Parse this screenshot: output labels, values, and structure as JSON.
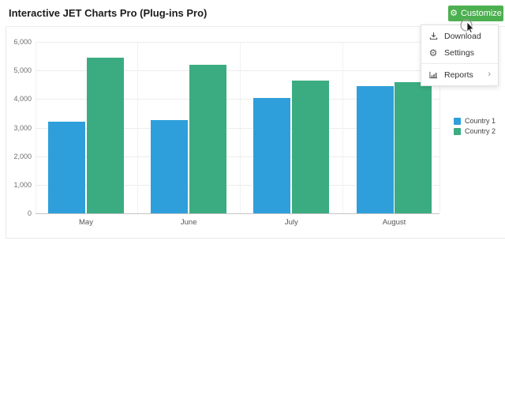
{
  "header": {
    "title": "Interactive JET Charts Pro (Plug-ins Pro)",
    "customize_label": "Customize",
    "customize_icon": "gear-icon"
  },
  "menu": {
    "items": [
      {
        "label": "Download",
        "icon": "download-icon",
        "has_submenu": false
      },
      {
        "label": "Settings",
        "icon": "gear-icon",
        "has_submenu": false
      },
      {
        "label": "Reports",
        "icon": "bar-chart-icon",
        "has_submenu": true
      }
    ],
    "submenu_arrow": "›"
  },
  "colors": {
    "accent_green": "#4CAF50",
    "series1_blue": "#2E9FDB",
    "series2_green": "#3BAC81",
    "axis_line": "#c5c5c5",
    "gridline": "#ededed"
  },
  "chart_data": {
    "type": "bar",
    "categories": [
      "May",
      "June",
      "July",
      "August"
    ],
    "series": [
      {
        "name": "Country 1",
        "color": "#2E9FDB",
        "values": [
          3200,
          3250,
          4050,
          4450
        ]
      },
      {
        "name": "Country 2",
        "color": "#3BAC81",
        "values": [
          5450,
          5200,
          4650,
          4600
        ]
      }
    ],
    "title": "",
    "xlabel": "",
    "ylabel": "",
    "ylim": [
      0,
      6000
    ],
    "ytick_step": 1000,
    "ytick_labels": [
      "0",
      "1,000",
      "2,000",
      "3,000",
      "4,000",
      "5,000",
      "6,000"
    ],
    "grid": true,
    "legend_position": "right"
  }
}
